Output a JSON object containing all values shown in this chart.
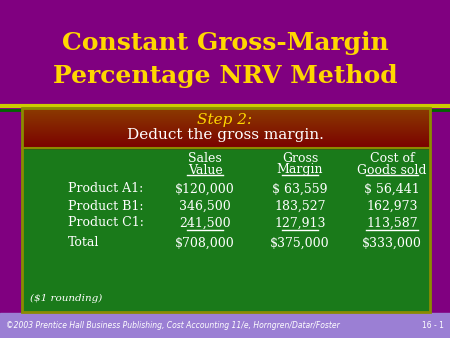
{
  "title_line1": "Constant Gross-Margin",
  "title_line2": "Percentage NRV Method",
  "title_color": "#FFD700",
  "title_bg_color": "#800080",
  "header_text_line1": "Step 2:",
  "header_text_line2": "Deduct the gross margin.",
  "table_bg_color": "#1A7A1A",
  "rows": [
    {
      "label": "Product A1:",
      "values": [
        "$120,000",
        "$ 63,559",
        "$ 56,441"
      ],
      "underline": false
    },
    {
      "label": "Product B1:",
      "values": [
        "346,500",
        "183,527",
        "162,973"
      ],
      "underline": false
    },
    {
      "label": "Product C1:",
      "values": [
        "241,500",
        "127,913",
        "113,587"
      ],
      "underline": true
    },
    {
      "label": "Total",
      "values": [
        "$708,000",
        "$375,000",
        "$333,000"
      ],
      "underline": false
    }
  ],
  "footnote": "($1 rounding)",
  "footer_text": "©2003 Prentice Hall Business Publishing, Cost Accounting 11/e, Horngren/Datar/Foster",
  "footer_right": "16 - 1",
  "footer_bg": "#9B7FD4",
  "border_color": "#8B8B00"
}
